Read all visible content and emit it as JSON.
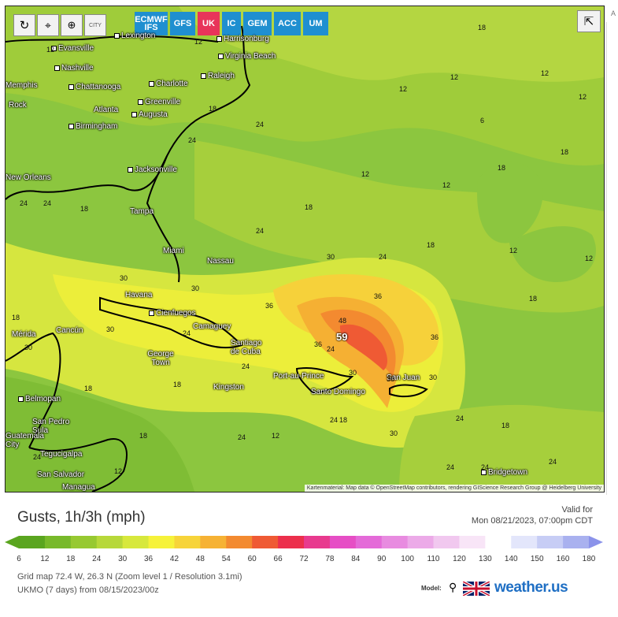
{
  "map": {
    "controls": [
      "refresh",
      "locate",
      "zoom",
      "city"
    ],
    "city_button_label": "CITY",
    "models": [
      {
        "label": "ECMWF IFS",
        "color": "#1f8fd0",
        "active": false
      },
      {
        "label": "GFS",
        "color": "#1f8fd0",
        "active": false
      },
      {
        "label": "UK",
        "color": "#e8345a",
        "active": true
      },
      {
        "label": "IC",
        "color": "#1f8fd0",
        "active": false
      },
      {
        "label": "GEM",
        "color": "#1f8fd0",
        "active": false
      },
      {
        "label": "ACC",
        "color": "#1f8fd0",
        "active": false
      },
      {
        "label": "UM",
        "color": "#1f8fd0",
        "active": false
      }
    ],
    "cities": [
      {
        "name": "Lexington"
      },
      {
        "name": "Harrisonburg"
      },
      {
        "name": "Evansville"
      },
      {
        "name": "Virginia Beach"
      },
      {
        "name": "Nashville"
      },
      {
        "name": "Raleigh"
      },
      {
        "name": "Memphis"
      },
      {
        "name": "Chattanooga"
      },
      {
        "name": "Charlotte"
      },
      {
        "name": "Rock"
      },
      {
        "name": "Greenville"
      },
      {
        "name": "Atlanta"
      },
      {
        "name": "Augusta"
      },
      {
        "name": "Birmingham"
      },
      {
        "name": "Jacksonville"
      },
      {
        "name": "New Orleans"
      },
      {
        "name": "Tampa"
      },
      {
        "name": "Miami"
      },
      {
        "name": "Nassau"
      },
      {
        "name": "Havana"
      },
      {
        "name": "Cienfuegos"
      },
      {
        "name": "Camaguey"
      },
      {
        "name": "Cancún"
      },
      {
        "name": "Mérida"
      },
      {
        "name": "Santiago de Cuba"
      },
      {
        "name": "George Town"
      },
      {
        "name": "Kingston"
      },
      {
        "name": "Port-au-Prince"
      },
      {
        "name": "Santo Domingo"
      },
      {
        "name": "San Juan"
      },
      {
        "name": "Belmopan"
      },
      {
        "name": "San Pedro Sula"
      },
      {
        "name": "Guatemala City"
      },
      {
        "name": "Tegucigalpa"
      },
      {
        "name": "San Salvador"
      },
      {
        "name": "Managua"
      },
      {
        "name": "Bridgetown"
      }
    ],
    "peak_value": "59",
    "attribution": "Kartenmaterial: Map data © OpenStreetMap contributors, rendering GIScience Research Group @ Heidelberg University"
  },
  "legend": {
    "title": "Gusts, 1h/3h (mph)",
    "valid_label": "Valid for",
    "valid_time": "Mon 08/21/2023, 07:00pm CDT",
    "scale": [
      {
        "value": "6",
        "color": "#5aa51f"
      },
      {
        "value": "12",
        "color": "#78b92a"
      },
      {
        "value": "18",
        "color": "#97c931"
      },
      {
        "value": "24",
        "color": "#b7d83a"
      },
      {
        "value": "30",
        "color": "#d7e83c"
      },
      {
        "value": "36",
        "color": "#f6f23a"
      },
      {
        "value": "42",
        "color": "#f7d43a"
      },
      {
        "value": "48",
        "color": "#f6b234"
      },
      {
        "value": "54",
        "color": "#f38a30"
      },
      {
        "value": "60",
        "color": "#ef5a34"
      },
      {
        "value": "66",
        "color": "#ec2f4c"
      },
      {
        "value": "72",
        "color": "#e83a8e"
      },
      {
        "value": "78",
        "color": "#e64ec5"
      },
      {
        "value": "84",
        "color": "#e46ad8"
      },
      {
        "value": "90",
        "color": "#e88be0"
      },
      {
        "value": "100",
        "color": "#ecaae8"
      },
      {
        "value": "110",
        "color": "#f1c8ef"
      },
      {
        "value": "120",
        "color": "#f8e5f7"
      },
      {
        "value": "130",
        "color": "#ffffff"
      },
      {
        "value": "140",
        "color": "#e3e6fb"
      },
      {
        "value": "150",
        "color": "#c7cdf5"
      },
      {
        "value": "160",
        "color": "#a9b1ef"
      },
      {
        "value": "180",
        "color": "#8b93ea"
      }
    ],
    "grid_info": "Grid map 72.4 W, 26.3 N (Zoom level 1 / Resolution 3.1mi)",
    "model_info": "UKMO (7 days) from 08/15/2023/00z",
    "model_label": "Model:",
    "brand": "weather.us"
  },
  "sidebar": {
    "label": "A"
  }
}
